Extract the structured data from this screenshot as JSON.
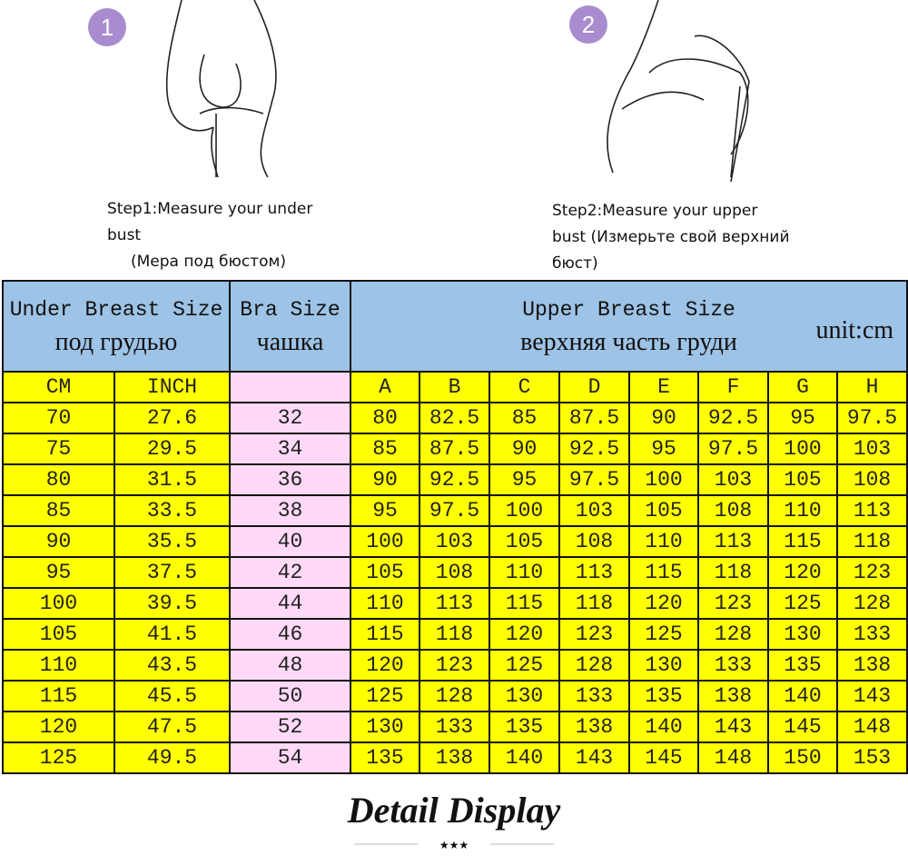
{
  "steps": [
    {
      "number": "1",
      "text_line1": "Step1:Measure your under",
      "text_line2": "bust",
      "text_line3": "(Мера под бюстом)"
    },
    {
      "number": "2",
      "text_line1": "Step2:Measure your upper",
      "text_line2": "bust (Измерьте свой верхний",
      "text_line3": "бюст)"
    }
  ],
  "colors": {
    "header": "#9dc3e6",
    "cells": "#ffff00",
    "bra_column": "#ffd9f7",
    "badge": "#a98ccf"
  },
  "table": {
    "under_header_en": "Under Breast Size",
    "under_header_ru": "под грудью",
    "bra_header_en": "Bra Size",
    "bra_header_ru": "чашка",
    "upper_header_en": "Upper Breast Size",
    "upper_header_ru": "верхняя часть груди",
    "unit": "unit:cm",
    "sub_headers": [
      "CM",
      "INCH",
      "",
      "A",
      "B",
      "C",
      "D",
      "E",
      "F",
      "G",
      "H"
    ],
    "rows": [
      [
        "70",
        "27.6",
        "32",
        "80",
        "82.5",
        "85",
        "87.5",
        "90",
        "92.5",
        "95",
        "97.5"
      ],
      [
        "75",
        "29.5",
        "34",
        "85",
        "87.5",
        "90",
        "92.5",
        "95",
        "97.5",
        "100",
        "103"
      ],
      [
        "80",
        "31.5",
        "36",
        "90",
        "92.5",
        "95",
        "97.5",
        "100",
        "103",
        "105",
        "108"
      ],
      [
        "85",
        "33.5",
        "38",
        "95",
        "97.5",
        "100",
        "103",
        "105",
        "108",
        "110",
        "113"
      ],
      [
        "90",
        "35.5",
        "40",
        "100",
        "103",
        "105",
        "108",
        "110",
        "113",
        "115",
        "118"
      ],
      [
        "95",
        "37.5",
        "42",
        "105",
        "108",
        "110",
        "113",
        "115",
        "118",
        "120",
        "123"
      ],
      [
        "100",
        "39.5",
        "44",
        "110",
        "113",
        "115",
        "118",
        "120",
        "123",
        "125",
        "128"
      ],
      [
        "105",
        "41.5",
        "46",
        "115",
        "118",
        "120",
        "123",
        "125",
        "128",
        "130",
        "133"
      ],
      [
        "110",
        "43.5",
        "48",
        "120",
        "123",
        "125",
        "128",
        "130",
        "133",
        "135",
        "138"
      ],
      [
        "115",
        "45.5",
        "50",
        "125",
        "128",
        "130",
        "133",
        "135",
        "138",
        "140",
        "143"
      ],
      [
        "120",
        "47.5",
        "52",
        "130",
        "133",
        "135",
        "138",
        "140",
        "143",
        "145",
        "148"
      ],
      [
        "125",
        "49.5",
        "54",
        "135",
        "138",
        "140",
        "143",
        "145",
        "148",
        "150",
        "153"
      ]
    ]
  },
  "footer": {
    "title": "Detail Display",
    "decoration": "★★★"
  }
}
